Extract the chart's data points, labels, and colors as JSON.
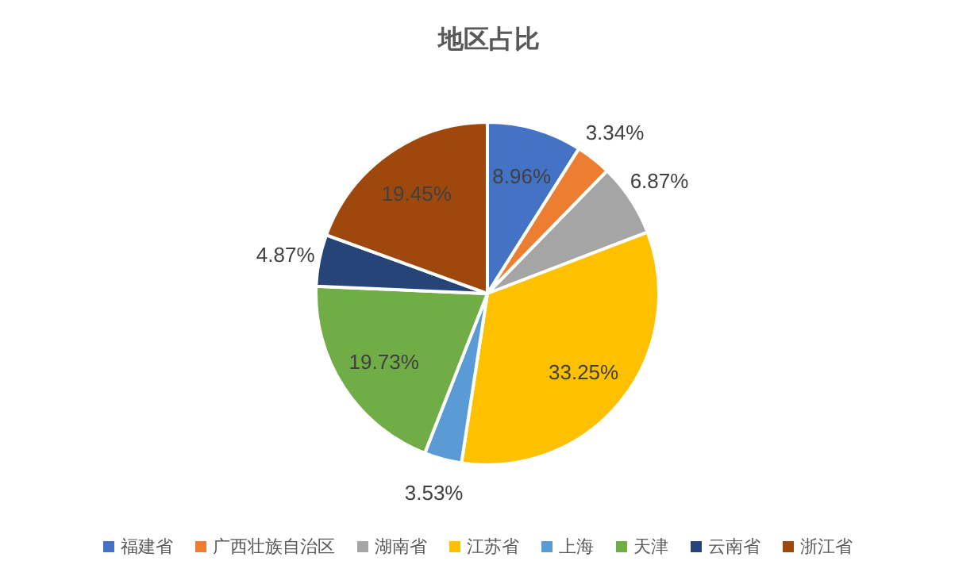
{
  "chart_data": {
    "type": "pie",
    "title": "地区占比",
    "categories": [
      "福建省",
      "广西壮族自治区",
      "湖南省",
      "江苏省",
      "上海",
      "天津",
      "云南省",
      "浙江省"
    ],
    "values": [
      8.96,
      3.34,
      6.87,
      33.25,
      3.53,
      19.73,
      4.87,
      19.45
    ],
    "colors": [
      "#4472c4",
      "#ed7d31",
      "#a5a5a5",
      "#ffc000",
      "#5b9bd5",
      "#70ad47",
      "#264478",
      "#9e480e"
    ],
    "value_labels": [
      "8.96%",
      "3.34%",
      "6.87%",
      "33.25%",
      "3.53%",
      "19.73%",
      "4.87%",
      "19.45%"
    ],
    "legend": "bottom"
  }
}
